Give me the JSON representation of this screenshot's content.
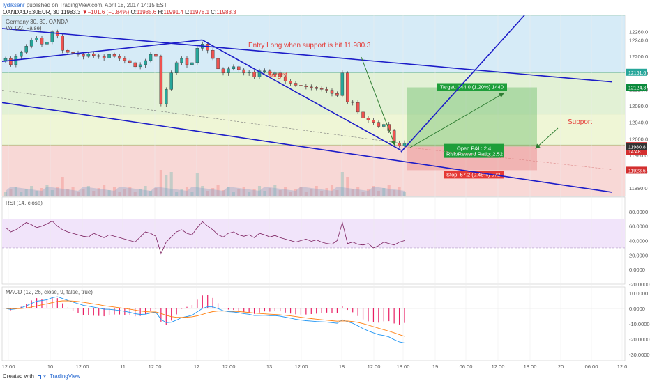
{
  "header": {
    "user": "lydiksenr",
    "published": "published on TradingView.com, April 18, 2017 14:15 EST",
    "symbol": "OANDA:DE30EUR, 30",
    "last": "11983.3",
    "change": "▼−101.6 (−0.84%)",
    "o_label": "O:",
    "o_val": "11985.6",
    "h_label": "H:",
    "h_val": "11991.4",
    "l_label": "L:",
    "l_val": "11978.1",
    "c_label": "C:",
    "c_val": "11983.3"
  },
  "footer": {
    "created": "Created with",
    "brand": "TradingView"
  },
  "colors": {
    "bull": "#26a69a",
    "bear": "#ef5350",
    "trend": "#1c1cc8",
    "rsi": "#7b1f5e",
    "macd": "#2196f3",
    "signal": "#ff7f0e",
    "hist": "#e91e63",
    "annotation": "#e53935"
  },
  "chart_data": [
    {
      "type": "candlestick",
      "title": "Germany 30, 30, OANDA",
      "subtitle": "Vol (22, False)",
      "ylim": [
        11860,
        12300
      ],
      "y_ticks": [
        "12260.0",
        "12240.0",
        "12200.0",
        "12160.0",
        "12120.0",
        "12080.0",
        "12040.0",
        "12000.0",
        "11960.0",
        "11920.0",
        "11880.0"
      ],
      "x_ticks": [
        "12:00",
        "10",
        "12:00",
        "11",
        "12:00",
        "12",
        "12:00",
        "13",
        "12:00",
        "18",
        "12:00",
        "18:00",
        "19",
        "06:00",
        "12:00",
        "18:00",
        "20",
        "06:00",
        "12:0"
      ],
      "close_series": [
        12195,
        12180,
        12200,
        12210,
        12225,
        12240,
        12245,
        12230,
        12235,
        12260,
        12250,
        12215,
        12210,
        12208,
        12205,
        12200,
        12206,
        12202,
        12200,
        12196,
        12205,
        12200,
        12195,
        12190,
        12185,
        12175,
        12180,
        12190,
        12205,
        12200,
        12085,
        12120,
        12160,
        12185,
        12195,
        12180,
        12185,
        12220,
        12230,
        12215,
        12195,
        12170,
        12160,
        12170,
        12175,
        12168,
        12160,
        12162,
        12150,
        12165,
        12165,
        12155,
        12160,
        12150,
        12140,
        12135,
        12130,
        12128,
        12126,
        12125,
        12122,
        12120,
        12118,
        12110,
        12105,
        12160,
        12090,
        12088,
        12065,
        12050,
        12045,
        12040,
        12030,
        12035,
        12020,
        11990,
        11983,
        11990
      ],
      "price_labels": [
        {
          "value": 12161.6,
          "text": "12161.6",
          "color": "#26a69a"
        },
        {
          "value": 12124.8,
          "text": "12124.8",
          "color": "#0b8a3c"
        },
        {
          "value": 11983.3,
          "text": "11983.3",
          "color": "#d32f2f"
        },
        {
          "value": 11970.0,
          "text": "14:48",
          "color": "#d32f2f"
        },
        {
          "value": 11980.8,
          "text": "11980.8",
          "color": "#333333"
        },
        {
          "value": 11923.6,
          "text": "11923.6",
          "color": "#d32f2f"
        }
      ],
      "position": {
        "entry": 11980.8,
        "target": 12124.8,
        "stop": 11923.6,
        "target_label": "Target: 144.0 (1.20%) 1440",
        "open_pl_label": "Open P&L: 2.4",
        "rr_label": "Risk/Reward Ratio: 2.52",
        "stop_label": "Stop: 57.2 (0.48%) 572"
      },
      "annotations": [
        "Entry Long when support is hit 11.980.3",
        "Target",
        "Support"
      ]
    },
    {
      "type": "line",
      "title": "RSI (14, close)",
      "ylim": [
        -20,
        100
      ],
      "y_ticks": [
        "80.0000",
        "60.0000",
        "40.0000",
        "20.0000",
        "0.0000",
        "-20.0000"
      ],
      "band": [
        30,
        70
      ],
      "values": [
        58,
        52,
        55,
        60,
        65,
        62,
        58,
        60,
        63,
        67,
        60,
        55,
        52,
        50,
        48,
        46,
        45,
        50,
        47,
        44,
        48,
        46,
        44,
        42,
        40,
        38,
        45,
        52,
        50,
        46,
        22,
        38,
        45,
        52,
        55,
        50,
        48,
        58,
        66,
        60,
        55,
        48,
        45,
        50,
        52,
        48,
        46,
        48,
        44,
        50,
        48,
        45,
        47,
        44,
        42,
        40,
        38,
        40,
        42,
        39,
        41,
        38,
        36,
        35,
        40,
        65,
        36,
        38,
        35,
        34,
        36,
        30,
        33,
        38,
        36,
        34,
        38,
        40
      ]
    },
    {
      "type": "line",
      "title": "MACD (12, 26, close, 9, false, true)",
      "ylim": [
        -34,
        14
      ],
      "y_ticks": [
        "10.0000",
        "0.0000",
        "-10.0000",
        "-20.0000",
        "-30.0000"
      ]
    }
  ]
}
